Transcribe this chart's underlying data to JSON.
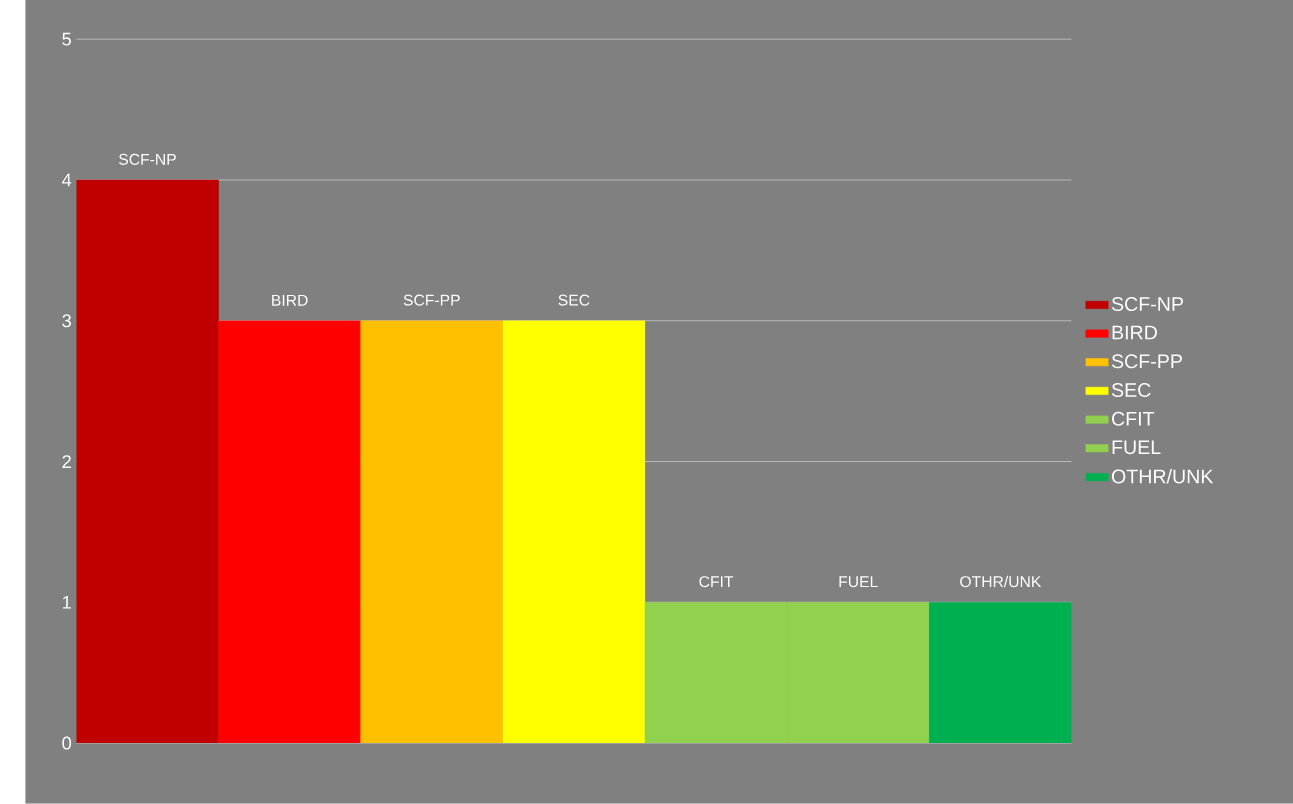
{
  "chart_data": {
    "type": "bar",
    "categories": [
      null,
      null,
      null,
      null,
      null,
      null,
      null
    ],
    "series": [
      {
        "name": "SCF-NP",
        "color": "#c00000",
        "values": [
          4,
          null,
          null,
          null,
          null,
          null,
          null
        ]
      },
      {
        "name": "BIRD",
        "color": "#ff0000",
        "values": [
          null,
          3,
          null,
          null,
          null,
          null,
          null
        ]
      },
      {
        "name": "SCF-PP",
        "color": "#ffc000",
        "values": [
          null,
          null,
          3,
          null,
          null,
          null,
          null
        ]
      },
      {
        "name": "SEC",
        "color": "#ffff00",
        "values": [
          null,
          null,
          null,
          3,
          null,
          null,
          null
        ]
      },
      {
        "name": "CFIT",
        "color": "#92d050",
        "values": [
          null,
          null,
          null,
          null,
          1,
          null,
          null
        ]
      },
      {
        "name": "FUEL",
        "color": "#92d050",
        "values": [
          null,
          null,
          null,
          null,
          null,
          1,
          null
        ]
      },
      {
        "name": "OTHR/UNK",
        "color": "#00b050",
        "values": [
          null,
          null,
          null,
          null,
          null,
          null,
          1
        ]
      }
    ],
    "ylim": [
      0,
      5
    ],
    "yticks": [
      0,
      1,
      2,
      3,
      4,
      5
    ],
    "grid": "y",
    "legend": "right",
    "tick_labels": "y"
  }
}
